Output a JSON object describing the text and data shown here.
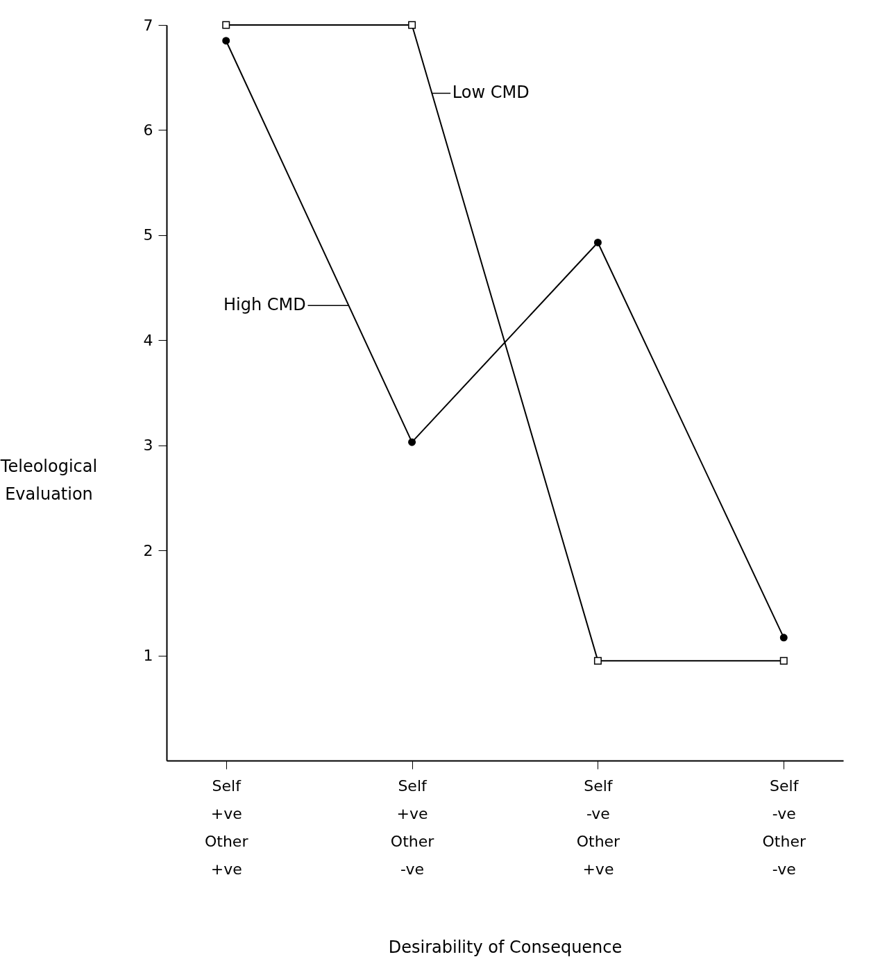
{
  "chart_data": {
    "type": "line",
    "xlabel": "Desirability of Consequence",
    "ylabel": "Teleological Evaluation",
    "categories": [
      "Self\n+ve\nOther\n+ve",
      "Self\n+ve\nOther\n-ve",
      "Self\n-ve\nOther\n+ve",
      "Self\n-ve\nOther\n-ve"
    ],
    "series": [
      {
        "name": "Low CMD",
        "color": "#000000",
        "marker": "square",
        "values": [
          7.0,
          7.0,
          0.95,
          0.95
        ]
      },
      {
        "name": "High CMD",
        "color": "#000000",
        "marker": "circle",
        "values": [
          6.85,
          3.03,
          4.93,
          1.17
        ]
      }
    ],
    "ylim": [
      0,
      7
    ],
    "yticks": [
      1,
      2,
      3,
      4,
      5,
      6,
      7
    ]
  }
}
